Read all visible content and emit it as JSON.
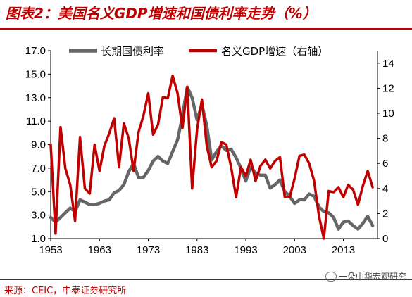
{
  "header": {
    "title": "图表2：美国名义GDP增速和国债利率走势（%）"
  },
  "footer": {
    "source": "来源：CEIC，中泰证券研究所",
    "watermark": "一朵中华宏观研究"
  },
  "colors": {
    "title": "#c00000",
    "series_yield": "#666666",
    "series_gdp": "#c00000"
  },
  "chart_data": {
    "type": "line",
    "title": "",
    "xlabel": "",
    "ylabel": "",
    "xlim": [
      1953,
      2020
    ],
    "ylim_left": [
      1.0,
      17.0
    ],
    "ylim_right": [
      0,
      15
    ],
    "x_ticks": [
      "1953",
      "1963",
      "1973",
      "1983",
      "1993",
      "2003",
      "2013"
    ],
    "y_ticks_left": [
      "1.0",
      "3.0",
      "5.0",
      "7.0",
      "9.0",
      "11.0",
      "13.0",
      "15.0",
      "17.0"
    ],
    "y_ticks_right": [
      "0",
      "2",
      "4",
      "6",
      "8",
      "10",
      "12",
      "14"
    ],
    "grid": false,
    "legend_position": "top",
    "series": [
      {
        "name": "长期国债利率",
        "axis": "left",
        "x": [
          1953,
          1954,
          1955,
          1956,
          1957,
          1958,
          1959,
          1960,
          1961,
          1962,
          1963,
          1964,
          1965,
          1966,
          1967,
          1968,
          1969,
          1970,
          1971,
          1972,
          1973,
          1974,
          1975,
          1976,
          1977,
          1978,
          1979,
          1980,
          1981,
          1982,
          1983,
          1984,
          1985,
          1986,
          1987,
          1988,
          1989,
          1990,
          1991,
          1992,
          1993,
          1994,
          1995,
          1996,
          1997,
          1998,
          1999,
          2000,
          2001,
          2002,
          2003,
          2004,
          2005,
          2006,
          2007,
          2008,
          2009,
          2010,
          2011,
          2012,
          2013,
          2014,
          2015,
          2016,
          2017,
          2018,
          2019
        ],
        "values": [
          2.8,
          2.4,
          2.8,
          3.2,
          3.6,
          3.3,
          4.3,
          4.1,
          3.9,
          3.9,
          4.0,
          4.2,
          4.3,
          4.9,
          5.1,
          5.6,
          6.7,
          7.4,
          6.2,
          6.2,
          6.8,
          7.6,
          8.0,
          7.6,
          7.4,
          8.4,
          9.4,
          11.4,
          13.9,
          13.0,
          11.1,
          12.4,
          10.6,
          7.7,
          8.4,
          8.9,
          8.5,
          8.6,
          7.9,
          7.0,
          5.9,
          7.1,
          6.6,
          6.4,
          6.4,
          5.3,
          5.6,
          6.0,
          5.0,
          4.6,
          4.0,
          4.3,
          4.3,
          4.8,
          4.6,
          3.7,
          3.3,
          3.2,
          2.8,
          1.8,
          2.4,
          2.5,
          2.1,
          1.8,
          2.3,
          2.9,
          2.1
        ]
      },
      {
        "name": "名义GDP增速（右轴）",
        "axis": "right",
        "x": [
          1953,
          1954,
          1955,
          1956,
          1957,
          1958,
          1959,
          1960,
          1961,
          1962,
          1963,
          1964,
          1965,
          1966,
          1967,
          1968,
          1969,
          1970,
          1971,
          1972,
          1973,
          1974,
          1975,
          1976,
          1977,
          1978,
          1979,
          1980,
          1981,
          1982,
          1983,
          1984,
          1985,
          1986,
          1987,
          1988,
          1989,
          1990,
          1991,
          1992,
          1993,
          1994,
          1995,
          1996,
          1997,
          1998,
          1999,
          2000,
          2001,
          2002,
          2003,
          2004,
          2005,
          2006,
          2007,
          2008,
          2009,
          2010,
          2011,
          2012,
          2013,
          2014,
          2015,
          2016,
          2017,
          2018,
          2019
        ],
        "values": [
          7.5,
          0.4,
          8.9,
          5.6,
          4.3,
          1.4,
          8.1,
          4.0,
          3.6,
          7.5,
          5.4,
          7.4,
          8.4,
          9.6,
          5.7,
          9.2,
          8.0,
          5.4,
          8.5,
          9.8,
          11.6,
          8.3,
          9.1,
          11.3,
          11.2,
          13.0,
          11.6,
          8.8,
          12.1,
          4.0,
          8.7,
          11.1,
          7.4,
          5.7,
          6.2,
          7.7,
          7.5,
          5.7,
          3.3,
          5.7,
          5.0,
          6.3,
          4.6,
          5.8,
          6.3,
          5.6,
          6.2,
          6.5,
          3.3,
          3.3,
          4.8,
          6.6,
          6.7,
          6.0,
          4.6,
          1.8,
          -2.0,
          3.8,
          3.7,
          4.1,
          3.3,
          4.3,
          3.9,
          2.7,
          4.2,
          5.4,
          4.1
        ]
      }
    ]
  }
}
